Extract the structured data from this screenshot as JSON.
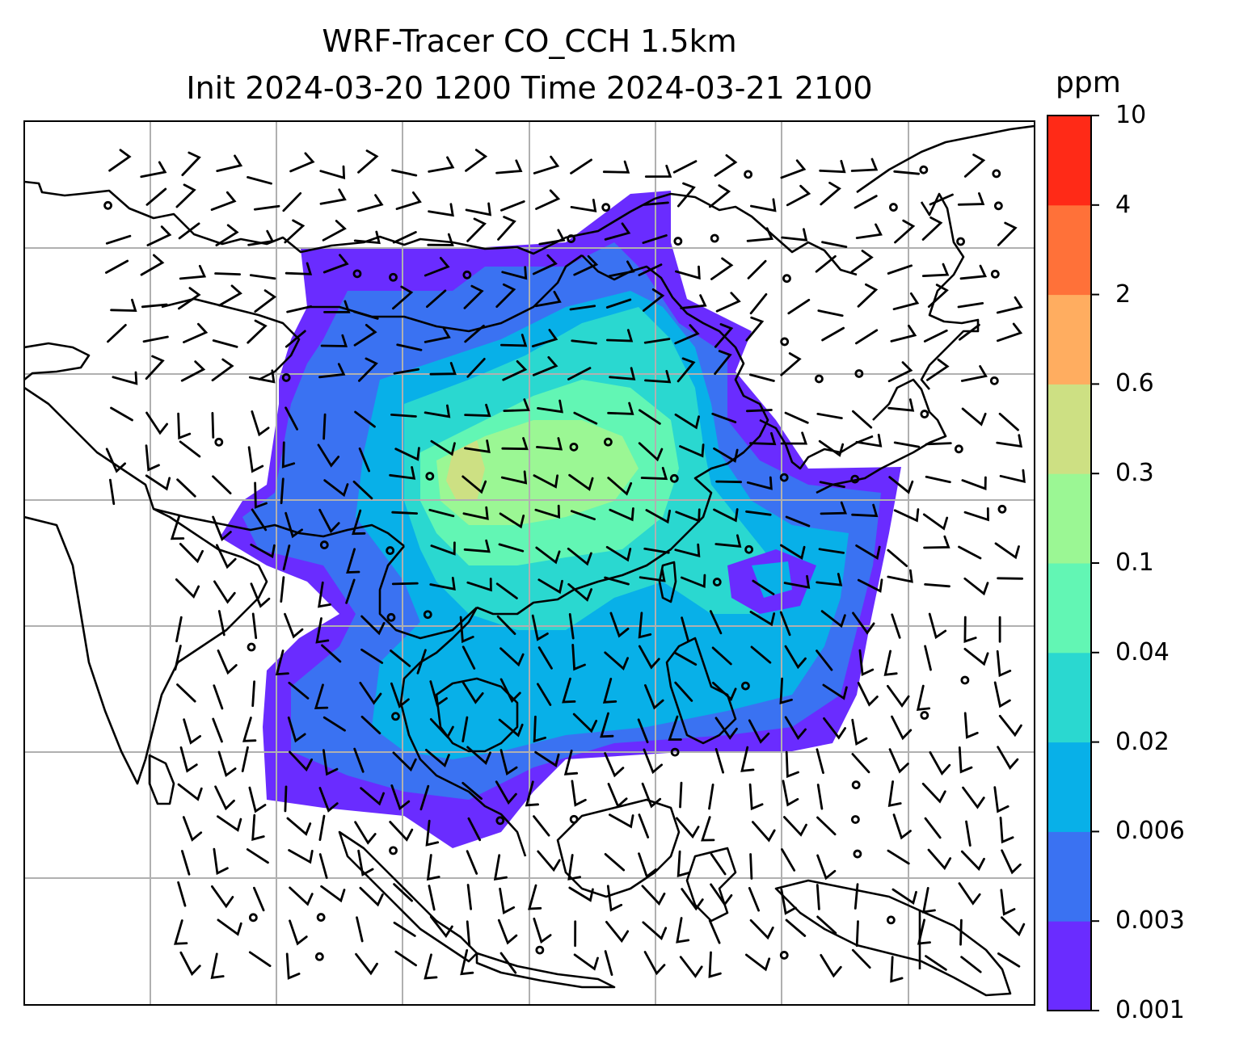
{
  "title_line1": "WRF-Tracer CO_CCH 1.5km",
  "title_line2": "Init 2024-03-20 1200 Time 2024-03-21 2100",
  "colorbar": {
    "unit": "ppm",
    "levels": [
      "0.001",
      "0.003",
      "0.006",
      "0.02",
      "0.04",
      "0.1",
      "0.3",
      "0.6",
      "2",
      "4",
      "10"
    ],
    "colors": [
      "#6a2cff",
      "#3a72f2",
      "#08b0e8",
      "#2ad8d0",
      "#62f6b4",
      "#9bf794",
      "#cde083",
      "#ffad60",
      "#ff7139",
      "#ff2a17"
    ]
  },
  "map": {
    "gridline_color": "#b0b0b0",
    "coastline_color": "#000000",
    "wind_barb_color": "#000000"
  }
}
